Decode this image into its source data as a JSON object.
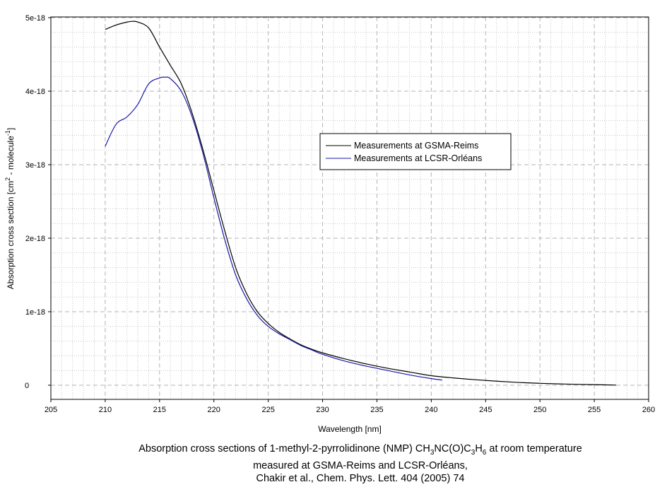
{
  "chart_data": {
    "type": "line",
    "xlabel": "Wavelength [nm]",
    "ylabel_text": "Absorption cross section [cm",
    "ylabel_sup1": "2",
    "ylabel_mid": " - molecule",
    "ylabel_sup2": "-1",
    "ylabel_end": "]",
    "xlim": [
      205,
      260
    ],
    "ylim": [
      0,
      5e-18
    ],
    "x_ticks": [
      205,
      210,
      215,
      220,
      225,
      230,
      235,
      240,
      245,
      250,
      255,
      260
    ],
    "x_tick_labels": [
      "205",
      "210",
      "215",
      "220",
      "225",
      "230",
      "235",
      "240",
      "245",
      "250",
      "255",
      "260"
    ],
    "y_ticks": [
      0,
      1e-18,
      2e-18,
      3e-18,
      4e-18,
      5e-18
    ],
    "y_tick_labels": [
      "0",
      "1e-18",
      "2e-18",
      "3e-18",
      "4e-18",
      "5e-18"
    ],
    "grid": true,
    "legend_position": "center-right",
    "series": [
      {
        "name": "Measurements at GSMA-Reims",
        "color": "#000000",
        "x": [
          210,
          211,
          212,
          212.5,
          213,
          214,
          215,
          216,
          217,
          218,
          219,
          220,
          221,
          222,
          223,
          224,
          225,
          226,
          227,
          228,
          229,
          230,
          232,
          234,
          236,
          238,
          240,
          242,
          244,
          246,
          248,
          250,
          252,
          254,
          256,
          257
        ],
        "y": [
          4.84e-18,
          4.9e-18,
          4.94e-18,
          4.95e-18,
          4.94e-18,
          4.86e-18,
          4.6e-18,
          4.35e-18,
          4.1e-18,
          3.7e-18,
          3.2e-18,
          2.65e-18,
          2.1e-18,
          1.6e-18,
          1.25e-18,
          1e-18,
          8.4e-19,
          7.2e-19,
          6.3e-19,
          5.5e-19,
          4.9e-19,
          4.4e-19,
          3.6e-19,
          2.9e-19,
          2.3e-19,
          1.8e-19,
          1.3e-19,
          1e-19,
          7.5e-20,
          5.5e-20,
          3.8e-20,
          2.6e-20,
          1.7e-20,
          1e-20,
          5e-21,
          2e-21
        ]
      },
      {
        "name": "Measurements at LCSR-Orléans",
        "color": "#1a1aa8",
        "x": [
          210,
          211,
          212,
          213,
          214,
          215,
          215.5,
          216,
          217,
          218,
          219,
          220,
          221,
          222,
          223,
          224,
          225,
          226,
          227,
          228,
          229,
          230,
          232,
          234,
          236,
          238,
          240,
          241
        ],
        "y": [
          3.25e-18,
          3.55e-18,
          3.65e-18,
          3.82e-18,
          4.1e-18,
          4.18e-18,
          4.19e-18,
          4.17e-18,
          4e-18,
          3.65e-18,
          3.15e-18,
          2.55e-18,
          1.98e-18,
          1.5e-18,
          1.18e-18,
          9.5e-19,
          8e-19,
          7e-19,
          6.2e-19,
          5.4e-19,
          4.8e-19,
          4.2e-19,
          3.3e-19,
          2.6e-19,
          2e-19,
          1.4e-19,
          9e-20,
          7e-20
        ]
      }
    ]
  },
  "caption": {
    "line1_pre": "Absorption cross sections of 1-methyl-2-pyrrolidinone (NMP) CH",
    "sub1": "3",
    "line1_mid1": "NC(O)C",
    "sub2": "3",
    "line1_mid2": "H",
    "sub3": "6",
    "line1_post": " at room temperature",
    "line2": "measured at GSMA-Reims and LCSR-Orléans,",
    "line3": "Chakir et al., Chem. Phys. Lett. 404 (2005) 74"
  }
}
